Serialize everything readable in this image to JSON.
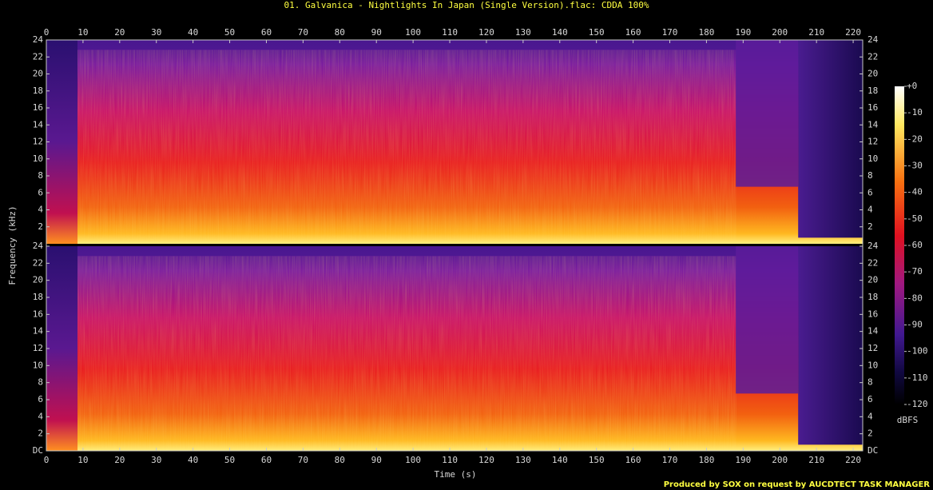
{
  "title": "01. Galvanica - Nightlights In Japan (Single Version).flac: CDDA 100%",
  "footer": "Produced by SOX on request by AUCDTECT TASK MANAGER",
  "chart_data": {
    "type": "spectrogram",
    "xlabel": "Time (s)",
    "ylabel": "Frequency (kHz)",
    "xlim": [
      0,
      222.6
    ],
    "xticks": [
      0,
      10,
      20,
      30,
      40,
      50,
      60,
      70,
      80,
      90,
      100,
      110,
      120,
      130,
      140,
      150,
      160,
      170,
      180,
      190,
      200,
      210,
      220
    ],
    "panels": [
      {
        "ylim": [
          0,
          24
        ],
        "yticks": [
          2,
          4,
          6,
          8,
          10,
          12,
          14,
          16,
          18,
          20,
          22,
          24
        ]
      },
      {
        "ylim": [
          0,
          24
        ],
        "yticks": [
          {
            "value": 0,
            "label": "DC"
          },
          2,
          4,
          6,
          8,
          10,
          12,
          14,
          16,
          18,
          20,
          22,
          24
        ]
      }
    ],
    "colorbar": {
      "label": "dBFS",
      "lim": [
        -120,
        0
      ],
      "ticks": [
        {
          "value": 0,
          "label": "+0"
        },
        -10,
        -20,
        -30,
        -40,
        -50,
        -60,
        -70,
        -80,
        -90,
        -100,
        -110,
        -120
      ]
    }
  }
}
